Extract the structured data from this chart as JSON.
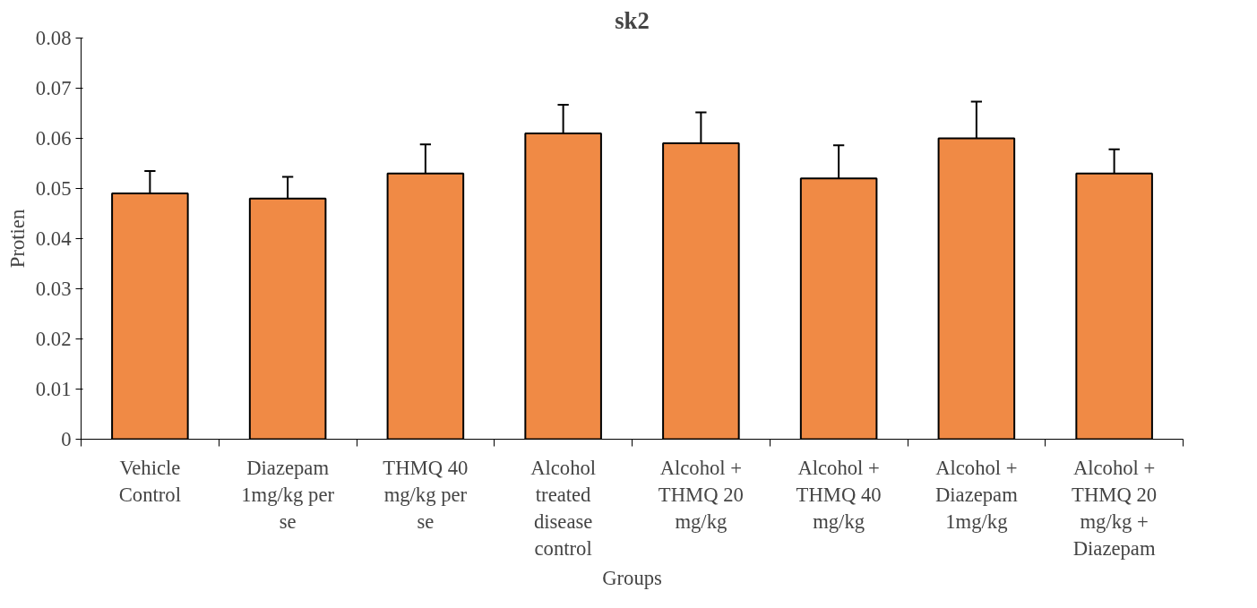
{
  "chart_data": {
    "type": "bar",
    "title": "sk2",
    "xlabel": "Groups",
    "ylabel": "Protien",
    "categories": [
      "Vehicle Control",
      "Diazepam 1mg/kg per se",
      "THMQ 40 mg/kg per se",
      "Alcohol treated disease control",
      "Alcohol + THMQ 20 mg/kg",
      "Alcohol + THMQ 40 mg/kg",
      "Alcohol + Diazepam 1mg/kg",
      "Alcohol + THMQ 20 mg/kg + Diazepam"
    ],
    "values": [
      0.049,
      0.048,
      0.053,
      0.061,
      0.059,
      0.052,
      0.06,
      0.053
    ],
    "errors": [
      [
        0.049,
        0.0535
      ],
      [
        0.048,
        0.0523
      ],
      [
        0.053,
        0.0588
      ],
      [
        0.061,
        0.0667
      ],
      [
        0.059,
        0.0652
      ],
      [
        0.052,
        0.0586
      ],
      [
        0.06,
        0.0673
      ],
      [
        0.053,
        0.0578
      ]
    ],
    "color": "#f08a45",
    "ylim": [
      0,
      0.08
    ],
    "yticks": [
      0,
      0.01,
      0.02,
      0.03,
      0.04,
      0.05,
      0.06,
      0.07,
      0.08
    ],
    "grid": false
  }
}
